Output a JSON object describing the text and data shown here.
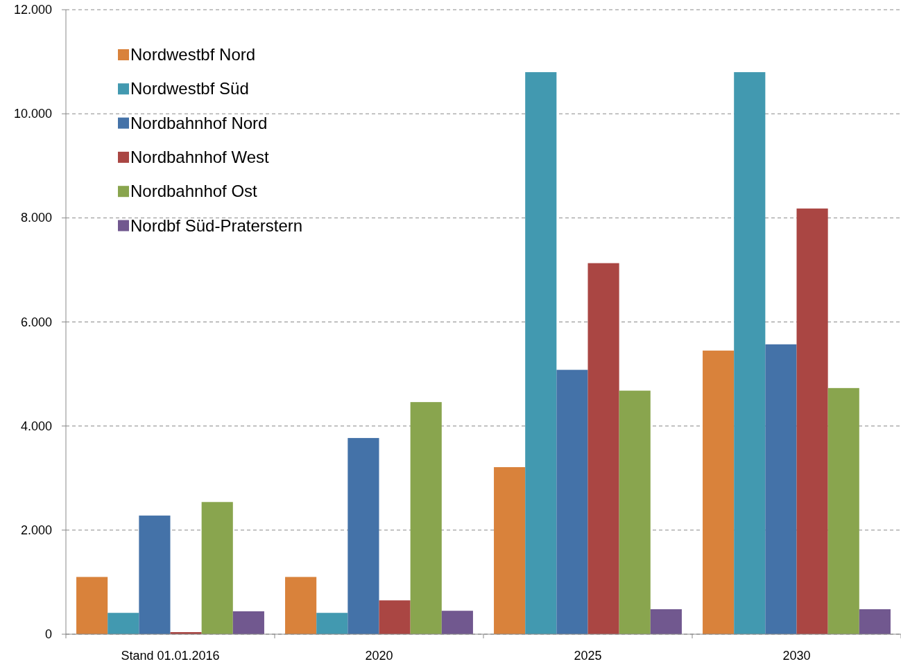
{
  "chart_data": {
    "type": "bar",
    "categories": [
      "Stand 01.01.2016",
      "2020",
      "2025",
      "2030"
    ],
    "series": [
      {
        "name": "Nordwestbf Nord",
        "color": "#d9823b",
        "values": [
          1100,
          1100,
          3210,
          5450
        ]
      },
      {
        "name": "Nordwestbf Süd",
        "color": "#4299b0",
        "values": [
          410,
          410,
          10800,
          10800
        ]
      },
      {
        "name": "Nordbahnhof Nord",
        "color": "#4472a8",
        "values": [
          2280,
          3770,
          5080,
          5570
        ]
      },
      {
        "name": "Nordbahnhof West",
        "color": "#aa4643",
        "values": [
          40,
          650,
          7130,
          8180
        ]
      },
      {
        "name": "Nordbahnhof Ost",
        "color": "#89a54e",
        "values": [
          2540,
          4460,
          4680,
          4730
        ]
      },
      {
        "name": "Nordbf Süd-Praterstern",
        "color": "#71588f",
        "values": [
          440,
          450,
          480,
          480
        ]
      }
    ],
    "ylim": [
      0,
      12000
    ],
    "yticks": [
      {
        "value": 0,
        "label": "0"
      },
      {
        "value": 2000,
        "label": "2.000"
      },
      {
        "value": 4000,
        "label": "4.000"
      },
      {
        "value": 6000,
        "label": "6.000"
      },
      {
        "value": 8000,
        "label": "8.000"
      },
      {
        "value": 10000,
        "label": "10.000"
      },
      {
        "value": 12000,
        "label": "12.000"
      }
    ],
    "grid": "y",
    "legend": "top left"
  }
}
